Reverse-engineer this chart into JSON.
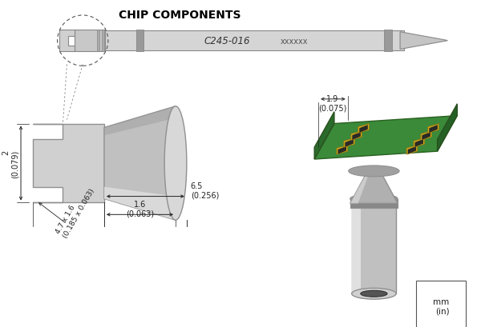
{
  "title": "CHIP COMPONENTS",
  "title_fontsize": 10,
  "bg_color": "#ffffff",
  "line_color": "#000000",
  "gray_light": "#d0d0d0",
  "gray_mid": "#909090",
  "gray_dark": "#606060",
  "gray_highlight": "#e8e8e8",
  "dim_color": "#222222",
  "annotation_fontsize": 7,
  "dims": {
    "d1_label": "1.6\n(0.063)",
    "d2_label": "6.5\n(0.256)",
    "d3_label": "2\n(0.079)",
    "d4_label": "4.7 x 1.6\n(0.185 x 0.063)",
    "d5_label": "1.9\n(0.075)"
  },
  "unit_label": "mm\n(in)",
  "part_number": "C245-016",
  "part_suffix": "xxxxxx"
}
